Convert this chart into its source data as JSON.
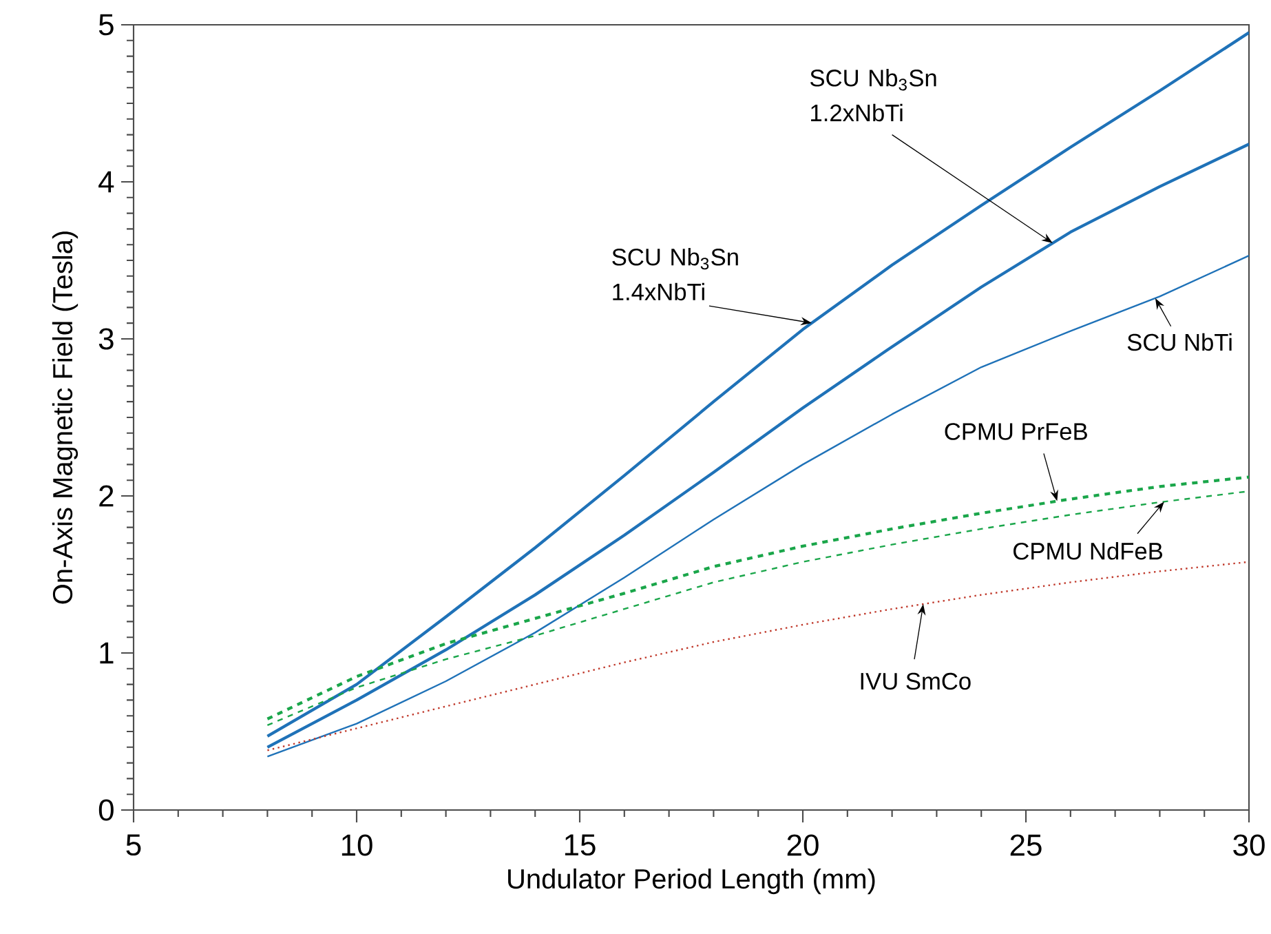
{
  "chart_data": {
    "type": "line",
    "xlabel": "Undulator Period Length (mm)",
    "ylabel": "On-Axis Magnetic Field (Tesla)",
    "xlim": [
      5,
      30
    ],
    "ylim": [
      0,
      5
    ],
    "xticks": [
      5,
      10,
      15,
      20,
      25,
      30
    ],
    "yticks": [
      0,
      1,
      2,
      3,
      4,
      5
    ],
    "grid": false,
    "marker": "none",
    "x": [
      8,
      10,
      12,
      14,
      16,
      18,
      20,
      22,
      24,
      26,
      28,
      30
    ],
    "series": [
      {
        "name": "SCU Nb$_{3}$Sn 1.4xNbTi",
        "color": "#1f72b8",
        "line_style": "solid",
        "values": [
          0.47,
          0.8,
          1.23,
          1.67,
          2.13,
          2.6,
          3.06,
          3.47,
          3.85,
          4.22,
          4.58,
          4.95
        ]
      },
      {
        "name": "SCU Nb$_{3}$Sn 1.2xNbTi",
        "color": "#1f72b8",
        "line_style": "solid",
        "values": [
          0.4,
          0.7,
          1.02,
          1.37,
          1.75,
          2.15,
          2.56,
          2.95,
          3.33,
          3.68,
          3.97,
          4.24
        ]
      },
      {
        "name": "SCU NbTi",
        "color": "#1f72b8",
        "line_style": "solid",
        "values": [
          0.34,
          0.55,
          0.82,
          1.13,
          1.48,
          1.85,
          2.2,
          2.52,
          2.82,
          3.05,
          3.27,
          3.53
        ]
      },
      {
        "name": "CPMU PrFeB",
        "color": "#1aa64a",
        "line_style": "dashed",
        "values": [
          0.58,
          0.85,
          1.06,
          1.22,
          1.38,
          1.55,
          1.68,
          1.79,
          1.89,
          1.98,
          2.06,
          2.12
        ]
      },
      {
        "name": "CPMU NdFeB",
        "color": "#1aa64a",
        "line_style": "dashed",
        "values": [
          0.54,
          0.78,
          0.96,
          1.11,
          1.28,
          1.45,
          1.58,
          1.69,
          1.79,
          1.88,
          1.96,
          2.03
        ]
      },
      {
        "name": "IVU SmCo",
        "color": "#c0392b",
        "line_style": "dotted",
        "values": [
          0.38,
          0.52,
          0.66,
          0.8,
          0.94,
          1.07,
          1.18,
          1.28,
          1.37,
          1.45,
          1.52,
          1.58
        ]
      }
    ]
  }
}
